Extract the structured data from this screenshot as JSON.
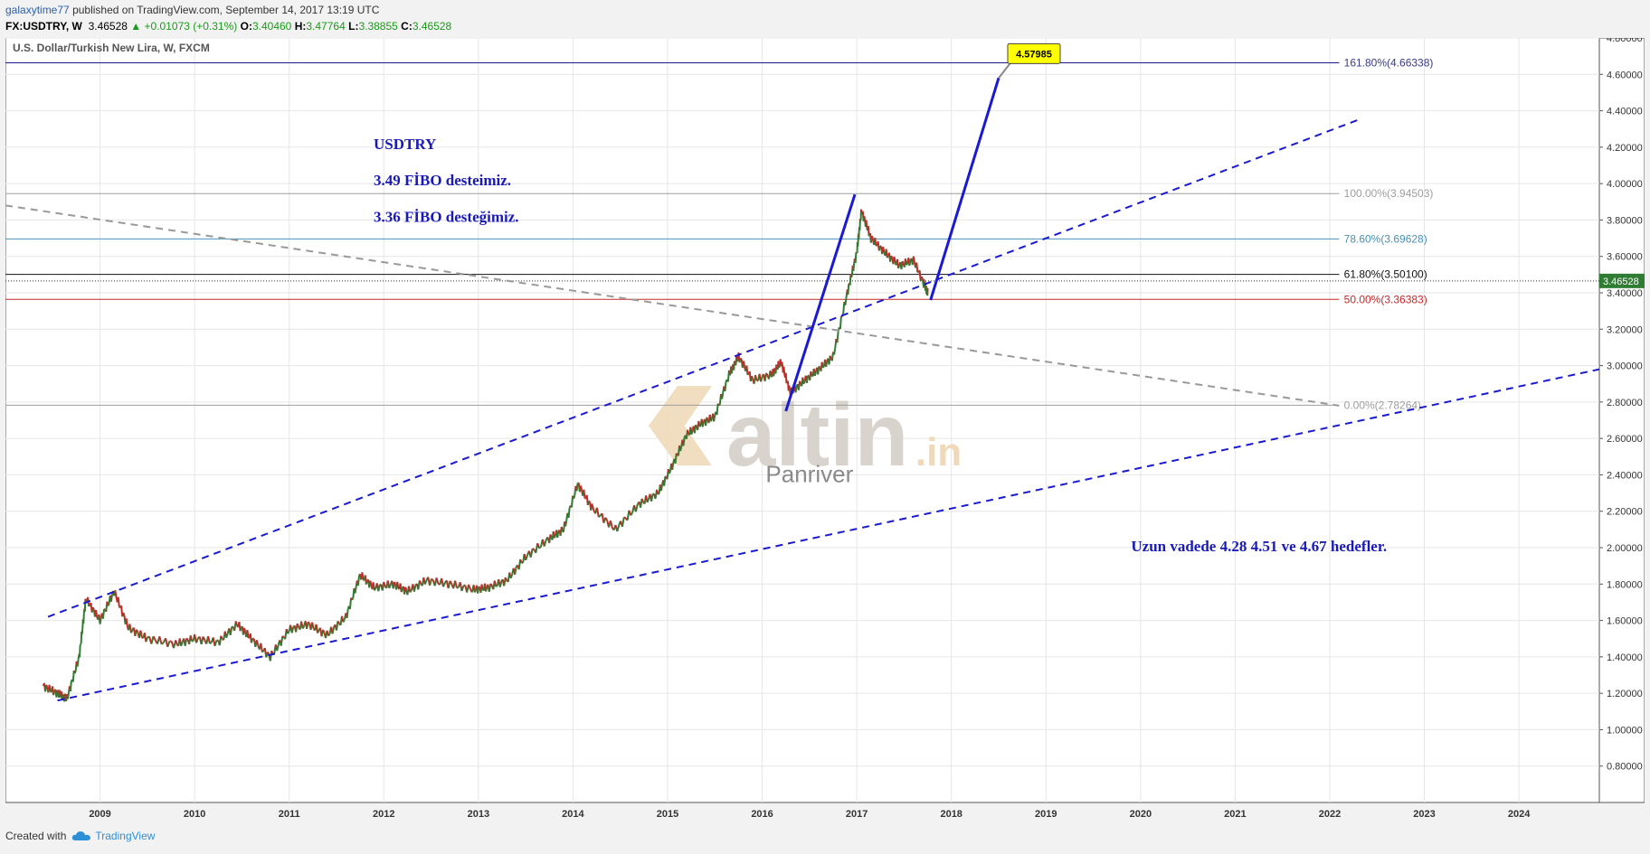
{
  "header": {
    "author": "galaxytime77",
    "published": "published on TradingView.com, September 14, 2017 13:19 UTC",
    "symbol": "FX:USDTRY, W",
    "price": "3.46528",
    "change": "+0.01073 (+0.31%)",
    "o_label": "O:",
    "o": "3.40460",
    "h_label": "H:",
    "h": "3.47764",
    "l_label": "L:",
    "l": "3.38855",
    "c_label": "C:",
    "c": "3.46528"
  },
  "footer": {
    "created_with": "Created with",
    "brand": "TradingView"
  },
  "chart_data": {
    "type": "line",
    "title": "U.S. Dollar/Turkish New Lira, W, FXCM",
    "x_range": [
      2008.0,
      2024.85
    ],
    "ylim": [
      0.6,
      4.8
    ],
    "y_ticks": [
      "0.80000",
      "1.00000",
      "1.20000",
      "1.40000",
      "1.60000",
      "1.80000",
      "2.00000",
      "2.20000",
      "2.40000",
      "2.60000",
      "2.80000",
      "3.00000",
      "3.20000",
      "3.40000",
      "3.60000",
      "3.80000",
      "4.00000",
      "4.20000",
      "4.40000",
      "4.60000",
      "4.80000"
    ],
    "x_ticks": [
      "2009",
      "2010",
      "2011",
      "2012",
      "2013",
      "2014",
      "2015",
      "2016",
      "2017",
      "2018",
      "2019",
      "2020",
      "2021",
      "2022",
      "2023",
      "2024"
    ],
    "grid": true,
    "last_price": {
      "value": 3.46528,
      "label": "3.46528"
    },
    "price_series": [
      [
        2008.4,
        1.24
      ],
      [
        2008.55,
        1.2
      ],
      [
        2008.65,
        1.17
      ],
      [
        2008.78,
        1.4
      ],
      [
        2008.85,
        1.72
      ],
      [
        2009.0,
        1.6
      ],
      [
        2009.15,
        1.76
      ],
      [
        2009.3,
        1.56
      ],
      [
        2009.5,
        1.5
      ],
      [
        2009.8,
        1.47
      ],
      [
        2010.0,
        1.5
      ],
      [
        2010.25,
        1.48
      ],
      [
        2010.45,
        1.58
      ],
      [
        2010.6,
        1.5
      ],
      [
        2010.8,
        1.4
      ],
      [
        2011.0,
        1.55
      ],
      [
        2011.2,
        1.58
      ],
      [
        2011.4,
        1.52
      ],
      [
        2011.6,
        1.62
      ],
      [
        2011.75,
        1.85
      ],
      [
        2011.9,
        1.78
      ],
      [
        2012.1,
        1.8
      ],
      [
        2012.25,
        1.76
      ],
      [
        2012.45,
        1.82
      ],
      [
        2012.7,
        1.8
      ],
      [
        2012.95,
        1.77
      ],
      [
        2013.1,
        1.78
      ],
      [
        2013.3,
        1.82
      ],
      [
        2013.5,
        1.95
      ],
      [
        2013.75,
        2.05
      ],
      [
        2013.9,
        2.1
      ],
      [
        2014.05,
        2.35
      ],
      [
        2014.2,
        2.22
      ],
      [
        2014.45,
        2.1
      ],
      [
        2014.7,
        2.24
      ],
      [
        2014.9,
        2.3
      ],
      [
        2015.05,
        2.45
      ],
      [
        2015.2,
        2.62
      ],
      [
        2015.35,
        2.68
      ],
      [
        2015.5,
        2.72
      ],
      [
        2015.65,
        2.95
      ],
      [
        2015.75,
        3.05
      ],
      [
        2015.9,
        2.92
      ],
      [
        2016.1,
        2.95
      ],
      [
        2016.2,
        3.02
      ],
      [
        2016.3,
        2.85
      ],
      [
        2016.45,
        2.92
      ],
      [
        2016.6,
        2.98
      ],
      [
        2016.75,
        3.05
      ],
      [
        2016.9,
        3.4
      ],
      [
        2017.0,
        3.62
      ],
      [
        2017.05,
        3.85
      ],
      [
        2017.15,
        3.7
      ],
      [
        2017.3,
        3.62
      ],
      [
        2017.45,
        3.55
      ],
      [
        2017.6,
        3.58
      ],
      [
        2017.75,
        3.4
      ],
      [
        2017.7,
        3.46528
      ]
    ],
    "fib_levels": [
      {
        "label": "161.80%(4.66338)",
        "value": 4.66338,
        "color": "#1b1b8a",
        "text_color": "#3a3a8a"
      },
      {
        "label": "100.00%(3.94503)",
        "value": 3.94503,
        "color": "#9e9e9e",
        "text_color": "#9e9e9e"
      },
      {
        "label": "78.60%(3.69628)",
        "value": 3.69628,
        "color": "#4a90b8",
        "text_color": "#4a90b8"
      },
      {
        "label": "61.80%(3.50100)",
        "value": 3.501,
        "color": "#111111",
        "text_color": "#111111"
      },
      {
        "label": "50.00%(3.36383)",
        "value": 3.36383,
        "color": "#c62828",
        "text_color": "#c62828"
      },
      {
        "label": "0.00%(2.78264)",
        "value": 2.78264,
        "color": "#9e9e9e",
        "text_color": "#9e9e9e"
      }
    ],
    "trendlines": [
      {
        "style": "dashed",
        "color": "#1a1ad0",
        "from": [
          2008.45,
          1.62
        ],
        "to": [
          2022.3,
          4.35
        ]
      },
      {
        "style": "dashed",
        "color": "#1a1ad0",
        "from": [
          2008.55,
          1.16
        ],
        "to": [
          2024.85,
          2.98
        ]
      },
      {
        "style": "dashed",
        "color": "#999999",
        "from": [
          2008.0,
          3.88
        ],
        "to": [
          2022.1,
          2.78
        ]
      },
      {
        "style": "solid",
        "color": "#1a1ad0",
        "from": [
          2016.25,
          2.75
        ],
        "to": [
          2016.98,
          3.94
        ]
      },
      {
        "style": "solid",
        "color": "#1a1ad0",
        "from": [
          2017.78,
          3.36
        ],
        "to": [
          2018.5,
          4.57985
        ]
      }
    ],
    "callout": {
      "label": "4.57985",
      "value": 4.57985
    },
    "annotations": {
      "line1": "USDTRY",
      "line2": "3.49 FİBO desteimiz.",
      "line3": "3.36 FİBO desteğimiz.",
      "target": "Uzun vadede 4.28    4.51  ve 4.67  hedefler."
    },
    "watermark": {
      "brand": "altin",
      "tld": ".in",
      "sub": "Panriver"
    }
  }
}
